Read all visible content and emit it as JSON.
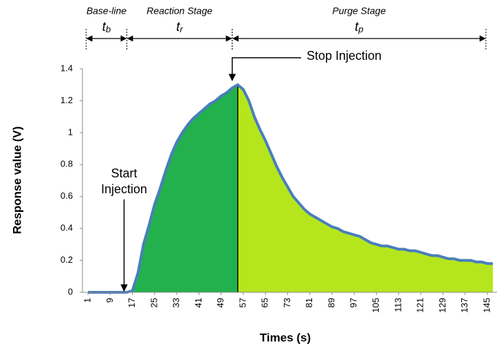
{
  "chart_data": {
    "type": "area",
    "x_label": "Times (s)",
    "y_label": "Response value (V)",
    "x": [
      1,
      3,
      5,
      7,
      9,
      11,
      13,
      15,
      17,
      19,
      21,
      23,
      25,
      27,
      29,
      31,
      33,
      35,
      37,
      39,
      41,
      43,
      45,
      47,
      49,
      51,
      53,
      55,
      57,
      59,
      61,
      63,
      65,
      67,
      69,
      71,
      73,
      75,
      77,
      79,
      81,
      83,
      85,
      87,
      89,
      91,
      93,
      95,
      97,
      99,
      101,
      103,
      105,
      107,
      109,
      111,
      113,
      115,
      117,
      119,
      121,
      123,
      125,
      127,
      129,
      131,
      133,
      135,
      137,
      139,
      141,
      143,
      145,
      147
    ],
    "series": [
      {
        "line_color": "#4a7ebb",
        "colors": [
          "#22b14c",
          "#b5e61d"
        ],
        "values": [
          0,
          0,
          0,
          0,
          0,
          0,
          0,
          0,
          0.01,
          0.12,
          0.3,
          0.42,
          0.55,
          0.65,
          0.76,
          0.86,
          0.94,
          1.0,
          1.05,
          1.09,
          1.12,
          1.15,
          1.18,
          1.2,
          1.23,
          1.25,
          1.28,
          1.3,
          1.27,
          1.2,
          1.1,
          1.02,
          0.95,
          0.87,
          0.79,
          0.72,
          0.66,
          0.6,
          0.56,
          0.52,
          0.49,
          0.47,
          0.45,
          0.43,
          0.41,
          0.4,
          0.38,
          0.37,
          0.36,
          0.35,
          0.33,
          0.31,
          0.3,
          0.29,
          0.29,
          0.28,
          0.27,
          0.27,
          0.26,
          0.26,
          0.25,
          0.24,
          0.23,
          0.23,
          0.22,
          0.21,
          0.21,
          0.2,
          0.2,
          0.2,
          0.19,
          0.19,
          0.18,
          0.18
        ]
      }
    ],
    "split_x": 55,
    "xlim": [
      -1,
      148.5
    ],
    "ylim": [
      0,
      1.4
    ],
    "xticks": [
      1,
      9,
      17,
      25,
      33,
      41,
      49,
      57,
      65,
      73,
      81,
      89,
      97,
      105,
      113,
      121,
      129,
      137,
      145
    ],
    "yticks": [
      0,
      0.2,
      0.4,
      0.6,
      0.8,
      1,
      1.2,
      1.4
    ],
    "annotations": [
      {
        "lines": [
          "Start",
          "Injection"
        ],
        "x": 14
      },
      {
        "lines": [
          "Stop Injection"
        ],
        "x": 53
      }
    ],
    "stages": [
      {
        "name": "Base-line",
        "symbol": "t",
        "subscript": "b",
        "from": 0.3,
        "to": 15
      },
      {
        "name": "Reaction Stage",
        "symbol": "t",
        "subscript": "r",
        "from": 15,
        "to": 53
      },
      {
        "name": "Purge Stage",
        "symbol": "t",
        "subscript": "p",
        "from": 53,
        "to": 144.5
      }
    ]
  }
}
